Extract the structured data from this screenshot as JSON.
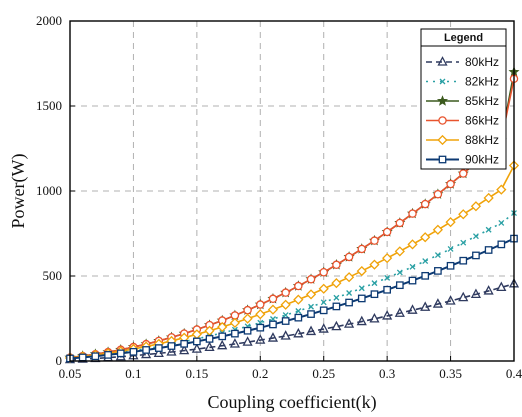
{
  "chart_data": {
    "type": "line",
    "title": "",
    "xlabel": "Coupling coefficient(k)",
    "ylabel": "Power(W)",
    "xlim": [
      0.05,
      0.4
    ],
    "ylim": [
      0,
      2000
    ],
    "x_ticks": [
      "0.05",
      "0.1",
      "0.15",
      "0.2",
      "0.25",
      "0.3",
      "0.35",
      "0.4"
    ],
    "y_ticks": [
      "0",
      "500",
      "1000",
      "1500",
      "2000"
    ],
    "grid": true,
    "legend": {
      "title": "Legend",
      "position": "top-right"
    },
    "x": [
      0.05,
      0.06,
      0.07,
      0.08,
      0.09,
      0.1,
      0.11,
      0.12,
      0.13,
      0.14,
      0.15,
      0.16,
      0.17,
      0.18,
      0.19,
      0.2,
      0.21,
      0.22,
      0.23,
      0.24,
      0.25,
      0.26,
      0.27,
      0.28,
      0.29,
      0.3,
      0.31,
      0.32,
      0.33,
      0.34,
      0.35,
      0.36,
      0.37,
      0.38,
      0.39,
      0.4
    ],
    "series": [
      {
        "name": "80kHz",
        "color": "#2f3a5f",
        "marker": "triangle",
        "dash": "6,4",
        "values": [
          8,
          11,
          15,
          20,
          25,
          31,
          38,
          45,
          53,
          61,
          70,
          80,
          90,
          100,
          111,
          123,
          135,
          147,
          160,
          174,
          188,
          202,
          217,
          232,
          248,
          265,
          281,
          299,
          316,
          335,
          353,
          373,
          392,
          412,
          433,
          454
        ]
      },
      {
        "name": "82kHz",
        "color": "#2aa0a4",
        "marker": "x",
        "dash": "2,5",
        "values": [
          15,
          22,
          30,
          39,
          49,
          60,
          72,
          85,
          99,
          114,
          130,
          147,
          165,
          184,
          204,
          225,
          247,
          270,
          294,
          319,
          345,
          372,
          400,
          428,
          458,
          489,
          521,
          554,
          588,
          623,
          659,
          696,
          734,
          772,
          812,
          870
        ]
      },
      {
        "name": "85kHz",
        "color": "#3c5a1e",
        "marker": "star",
        "dash": "",
        "values": [
          20,
          29,
          40,
          52,
          66,
          82,
          99,
          118,
          139,
          161,
          185,
          211,
          238,
          268,
          299,
          332,
          366,
          402,
          441,
          481,
          522,
          566,
          612,
          659,
          708,
          759,
          812,
          867,
          923,
          981,
          1041,
          1103,
          1167,
          1232,
          1299,
          1700
        ]
      },
      {
        "name": "86kHz",
        "color": "#e8542e",
        "marker": "circle",
        "dash": "",
        "values": [
          20,
          29,
          40,
          52,
          66,
          82,
          99,
          118,
          139,
          161,
          185,
          211,
          238,
          268,
          299,
          332,
          366,
          402,
          441,
          481,
          522,
          566,
          612,
          659,
          708,
          759,
          812,
          867,
          923,
          981,
          1041,
          1103,
          1167,
          1232,
          1299,
          1660
        ]
      },
      {
        "name": "88kHz",
        "color": "#f0a30a",
        "marker": "diamond",
        "dash": "",
        "values": [
          18,
          26,
          35,
          45,
          57,
          71,
          85,
          101,
          118,
          137,
          157,
          178,
          200,
          224,
          249,
          275,
          302,
          331,
          361,
          392,
          425,
          458,
          493,
          529,
          567,
          605,
          645,
          686,
          728,
          772,
          817,
          863,
          910,
          959,
          1008,
          1150
        ]
      },
      {
        "name": "90kHz",
        "color": "#0d3a73",
        "marker": "square",
        "dash": "",
        "values": [
          15,
          21,
          28,
          36,
          45,
          54,
          65,
          76,
          88,
          101,
          115,
          130,
          145,
          161,
          178,
          196,
          215,
          235,
          255,
          276,
          298,
          321,
          344,
          368,
          393,
          419,
          446,
          473,
          501,
          530,
          560,
          590,
          621,
          653,
          686,
          720
        ]
      }
    ]
  }
}
